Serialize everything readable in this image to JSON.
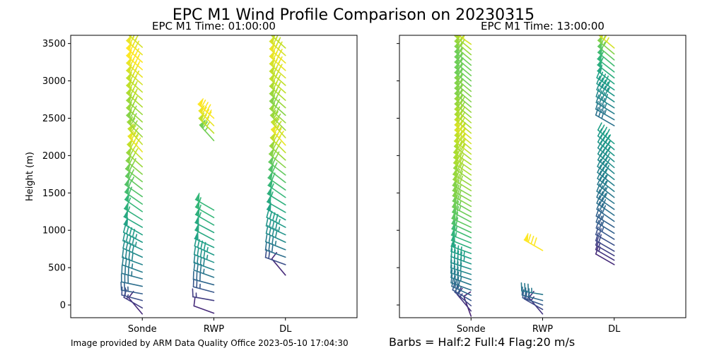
{
  "figure": {
    "title": "EPC M1 Wind Profile Comparison on 20230315",
    "credit": "Image provided by ARM Data Quality Office 2023-05-10 17:04:30",
    "legend_note": "Barbs = Half:2 Full:4 Flag:20 m/s",
    "credit_color": "#b22222",
    "legend_color": "#0000ff"
  },
  "chart_data": [
    {
      "type": "wind-barb",
      "title": "EPC M1 Time: 01:00:00",
      "ylabel": "Height (m)",
      "xlabel": "",
      "categories": [
        "Sonde",
        "RWP",
        "DL"
      ],
      "yticks": [
        0,
        500,
        1000,
        1500,
        2000,
        2500,
        3000,
        3500
      ],
      "ylim": [
        -170,
        3610
      ],
      "xlim": [
        -1,
        3
      ],
      "colormap": "viridis",
      "series": [
        {
          "instrument": "Sonde",
          "heights": [
            -120,
            -40,
            60,
            150,
            250,
            350,
            440,
            540,
            640,
            740,
            840,
            940,
            1040,
            1140,
            1250,
            1350,
            1450,
            1550,
            1650,
            1750,
            1850,
            1950,
            2050,
            2150,
            2250,
            2350,
            2450,
            2550,
            2650,
            2750,
            2850,
            2950,
            3050,
            3150,
            3250,
            3350,
            3450
          ],
          "speeds": [
            4,
            6,
            8,
            10,
            12,
            13,
            14,
            15,
            16,
            17,
            18,
            19,
            20,
            21,
            22,
            23,
            24,
            25,
            26,
            27,
            28,
            30,
            32,
            30,
            28,
            27,
            28,
            28,
            29,
            30,
            30,
            31,
            32,
            33,
            33,
            32,
            31
          ],
          "directions": [
            320,
            300,
            285,
            280,
            282,
            285,
            290,
            290,
            295,
            295,
            298,
            300,
            300,
            302,
            305,
            305,
            305,
            308,
            308,
            310,
            312,
            315,
            318,
            318,
            315,
            312,
            312,
            312,
            312,
            312,
            312,
            312,
            312,
            312,
            312,
            312,
            312
          ]
        },
        {
          "instrument": "RWP",
          "heights": [
            -110,
            60,
            170,
            270,
            370,
            470,
            570,
            670,
            770,
            870,
            970,
            1070,
            1170,
            1270,
            2200,
            2300,
            2400,
            2500
          ],
          "speeds": [
            4,
            6,
            9,
            11,
            13,
            15,
            17,
            18,
            19,
            20,
            20,
            21,
            22,
            22,
            26,
            30,
            32,
            33
          ],
          "directions": [
            290,
            280,
            285,
            285,
            290,
            290,
            292,
            295,
            295,
            298,
            298,
            300,
            300,
            300,
            318,
            315,
            315,
            312
          ]
        },
        {
          "instrument": "DL",
          "heights": [
            400,
            540,
            640,
            740,
            840,
            940,
            1040,
            1140,
            1240,
            1340,
            1440,
            1540,
            1640,
            1740,
            1840,
            1940,
            2040,
            2140,
            2240,
            2340,
            2440,
            2540,
            2640,
            2740,
            2840,
            2940,
            3040,
            3140,
            3240,
            3340,
            3440
          ],
          "speeds": [
            4,
            8,
            12,
            14,
            16,
            17,
            18,
            19,
            20,
            21,
            22,
            23,
            24,
            25,
            27,
            28,
            30,
            32,
            30,
            28,
            28,
            27,
            28,
            29,
            30,
            30,
            31,
            32,
            32,
            31,
            30
          ],
          "directions": [
            320,
            290,
            290,
            292,
            295,
            295,
            298,
            300,
            300,
            302,
            305,
            305,
            308,
            308,
            310,
            312,
            315,
            318,
            318,
            315,
            312,
            312,
            312,
            312,
            312,
            312,
            312,
            312,
            312,
            312,
            312
          ]
        }
      ]
    },
    {
      "type": "wind-barb",
      "title": "EPC M1 Time: 13:00:00",
      "ylabel": "",
      "xlabel": "",
      "categories": [
        "Sonde",
        "RWP",
        "DL"
      ],
      "yticks": [
        0,
        500,
        1000,
        1500,
        2000,
        2500,
        3000,
        3500
      ],
      "ylim": [
        -170,
        3610
      ],
      "xlim": [
        -1,
        3
      ],
      "colormap": "viridis",
      "series": [
        {
          "instrument": "Sonde",
          "heights": [
            -150,
            -80,
            -10,
            60,
            130,
            200,
            270,
            340,
            410,
            480,
            550,
            620,
            690,
            760,
            830,
            900,
            970,
            1040,
            1110,
            1180,
            1250,
            1320,
            1390,
            1460,
            1530,
            1600,
            1670,
            1740,
            1810,
            1880,
            1950,
            2020,
            2090,
            2160,
            2230,
            2300,
            2370,
            2440,
            2510,
            2580,
            2650,
            2720,
            2790,
            2860,
            2930,
            3000,
            3070,
            3140,
            3210,
            3280,
            3350,
            3420,
            3490
          ],
          "speeds": [
            3,
            5,
            7,
            9,
            11,
            12,
            13,
            14,
            15,
            16,
            17,
            18,
            19,
            20,
            21,
            22,
            23,
            24,
            24,
            25,
            25,
            26,
            26,
            26,
            27,
            27,
            27,
            28,
            28,
            28,
            28,
            29,
            29,
            30,
            30,
            29,
            28,
            28,
            27,
            27,
            26,
            26,
            26,
            26,
            25,
            25,
            25,
            25,
            25,
            26,
            27,
            28,
            30
          ],
          "directions": [
            340,
            320,
            310,
            300,
            295,
            290,
            290,
            288,
            288,
            288,
            290,
            290,
            290,
            292,
            292,
            295,
            295,
            295,
            298,
            298,
            300,
            300,
            300,
            300,
            302,
            302,
            305,
            305,
            305,
            305,
            308,
            308,
            310,
            310,
            310,
            310,
            310,
            310,
            310,
            310,
            310,
            310,
            310,
            310,
            310,
            310,
            310,
            310,
            310,
            310,
            310,
            310,
            305
          ]
        },
        {
          "instrument": "RWP",
          "heights": [
            -120,
            -60,
            0,
            60,
            140,
            730
          ],
          "speeds": [
            5,
            7,
            9,
            11,
            13,
            32
          ],
          "directions": [
            320,
            300,
            290,
            285,
            280,
            300
          ]
        },
        {
          "instrument": "DL",
          "heights": [
            540,
            600,
            660,
            720,
            800,
            880,
            960,
            1040,
            1120,
            1200,
            1280,
            1360,
            1440,
            1520,
            1600,
            1680,
            1760,
            1840,
            1920,
            2000,
            2080,
            2160,
            2400,
            2480,
            2560,
            2640,
            2720,
            2800,
            2880,
            2960,
            3040,
            3120,
            3200,
            3280,
            3360,
            3440
          ],
          "speeds": [
            4,
            5,
            6,
            7,
            8,
            9,
            10,
            10,
            11,
            12,
            12,
            13,
            13,
            14,
            14,
            15,
            15,
            16,
            16,
            17,
            17,
            18,
            12,
            13,
            14,
            15,
            16,
            17,
            18,
            19,
            20,
            21,
            22,
            24,
            26,
            30
          ],
          "directions": [
            300,
            300,
            300,
            300,
            300,
            302,
            302,
            302,
            305,
            305,
            305,
            305,
            308,
            308,
            308,
            308,
            310,
            310,
            310,
            310,
            310,
            310,
            300,
            300,
            302,
            302,
            305,
            305,
            305,
            308,
            308,
            308,
            310,
            310,
            310,
            310
          ]
        }
      ]
    }
  ]
}
